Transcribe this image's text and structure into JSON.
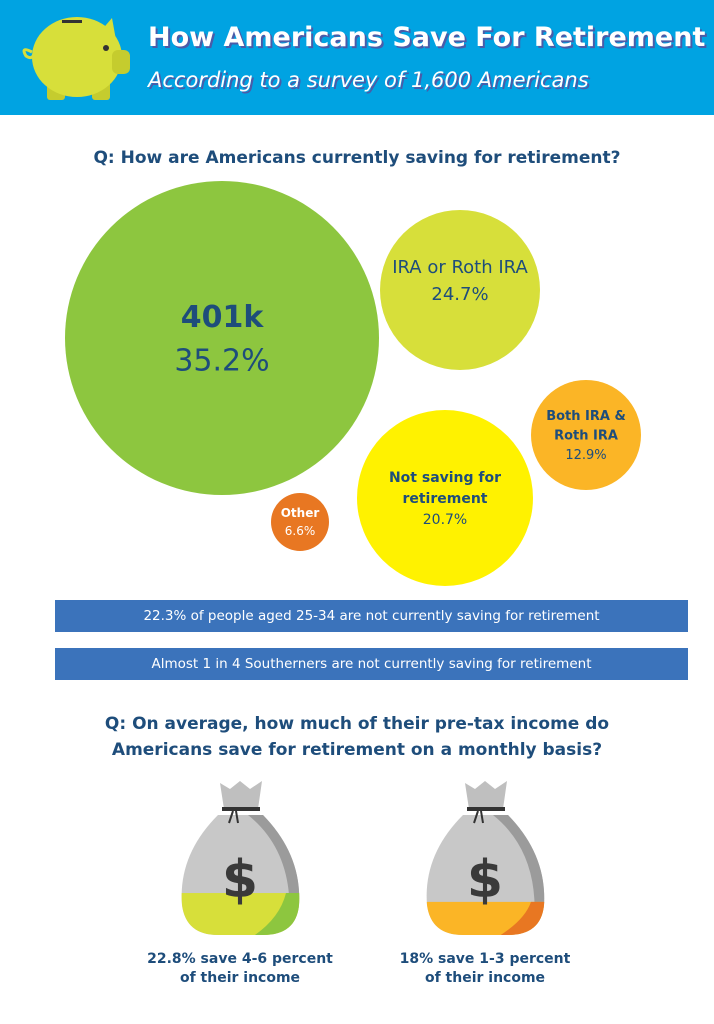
{
  "header": {
    "title": "How Americans Save For Retirement",
    "subtitle": "According to a survey of 1,600 Americans",
    "icon": "piggy-bank-icon"
  },
  "section1": {
    "question": "Q: How are Americans currently saving for retirement?"
  },
  "chart_data": {
    "type": "bubble",
    "categories": [
      "401k",
      "IRA or Roth IRA",
      "Not saving for retirement",
      "Both IRA & Roth IRA",
      "Other"
    ],
    "values": [
      35.2,
      24.7,
      20.7,
      12.9,
      6.6
    ],
    "labels": [
      "35.2%",
      "24.7%",
      "20.7%",
      "12.9%",
      "6.6%"
    ],
    "colors": [
      "#8dc63f",
      "#d7df3a",
      "#fff200",
      "#fbb526",
      "#e87722"
    ]
  },
  "facts": [
    "22.3% of people aged 25-34 are not currently saving for retirement",
    "Almost 1 in 4 Southerners are not currently saving for retirement"
  ],
  "section2": {
    "question_line1": "Q: On average, how much of their pre-tax income do",
    "question_line2": "Americans save for retirement on a monthly basis?",
    "bags": [
      {
        "value": 22.8,
        "line1": "22.8% save 4-6 percent",
        "line2": "of their income",
        "fill": "#d7df3a",
        "fill_dark": "#8dc63f",
        "icon": "money-bag-icon"
      },
      {
        "value": 18,
        "line1": "18% save 1-3 percent",
        "line2": "of their income",
        "fill": "#fbb526",
        "fill_dark": "#e87722",
        "icon": "money-bag-icon"
      }
    ]
  }
}
